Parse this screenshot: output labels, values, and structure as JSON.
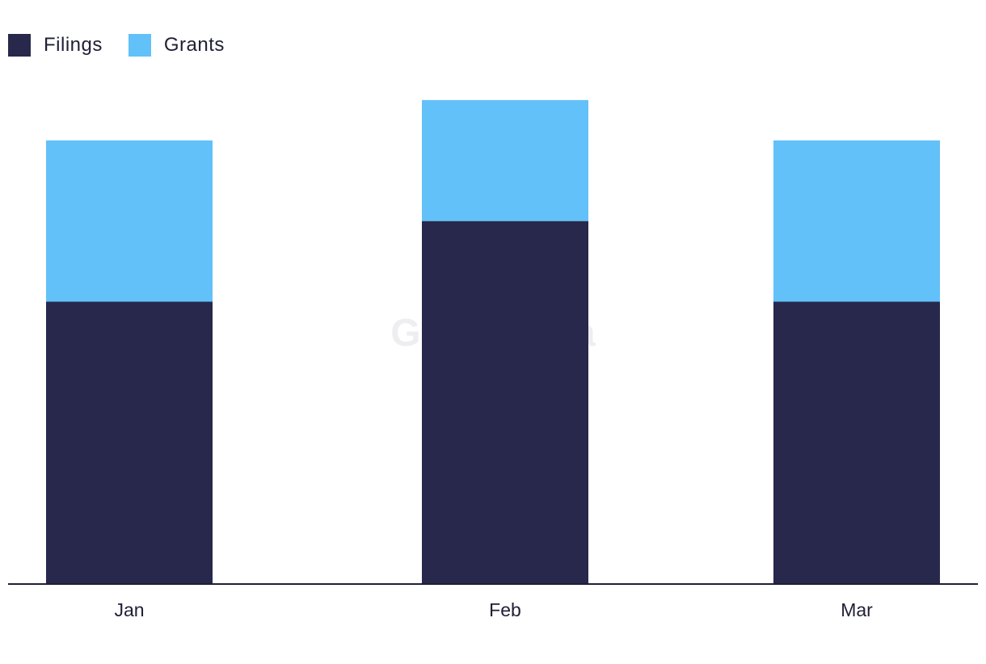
{
  "chart_data": {
    "type": "bar",
    "stacked": true,
    "categories": [
      "Jan",
      "Feb",
      "Mar"
    ],
    "series": [
      {
        "name": "Filings",
        "color": "#28284c",
        "values": [
          7,
          9,
          7
        ]
      },
      {
        "name": "Grants",
        "color": "#62c1f8",
        "values": [
          4,
          3,
          4
        ]
      }
    ],
    "ylim": [
      0,
      14
    ],
    "legend_position": "top-left",
    "grid": false,
    "watermark": "GlobalData"
  }
}
